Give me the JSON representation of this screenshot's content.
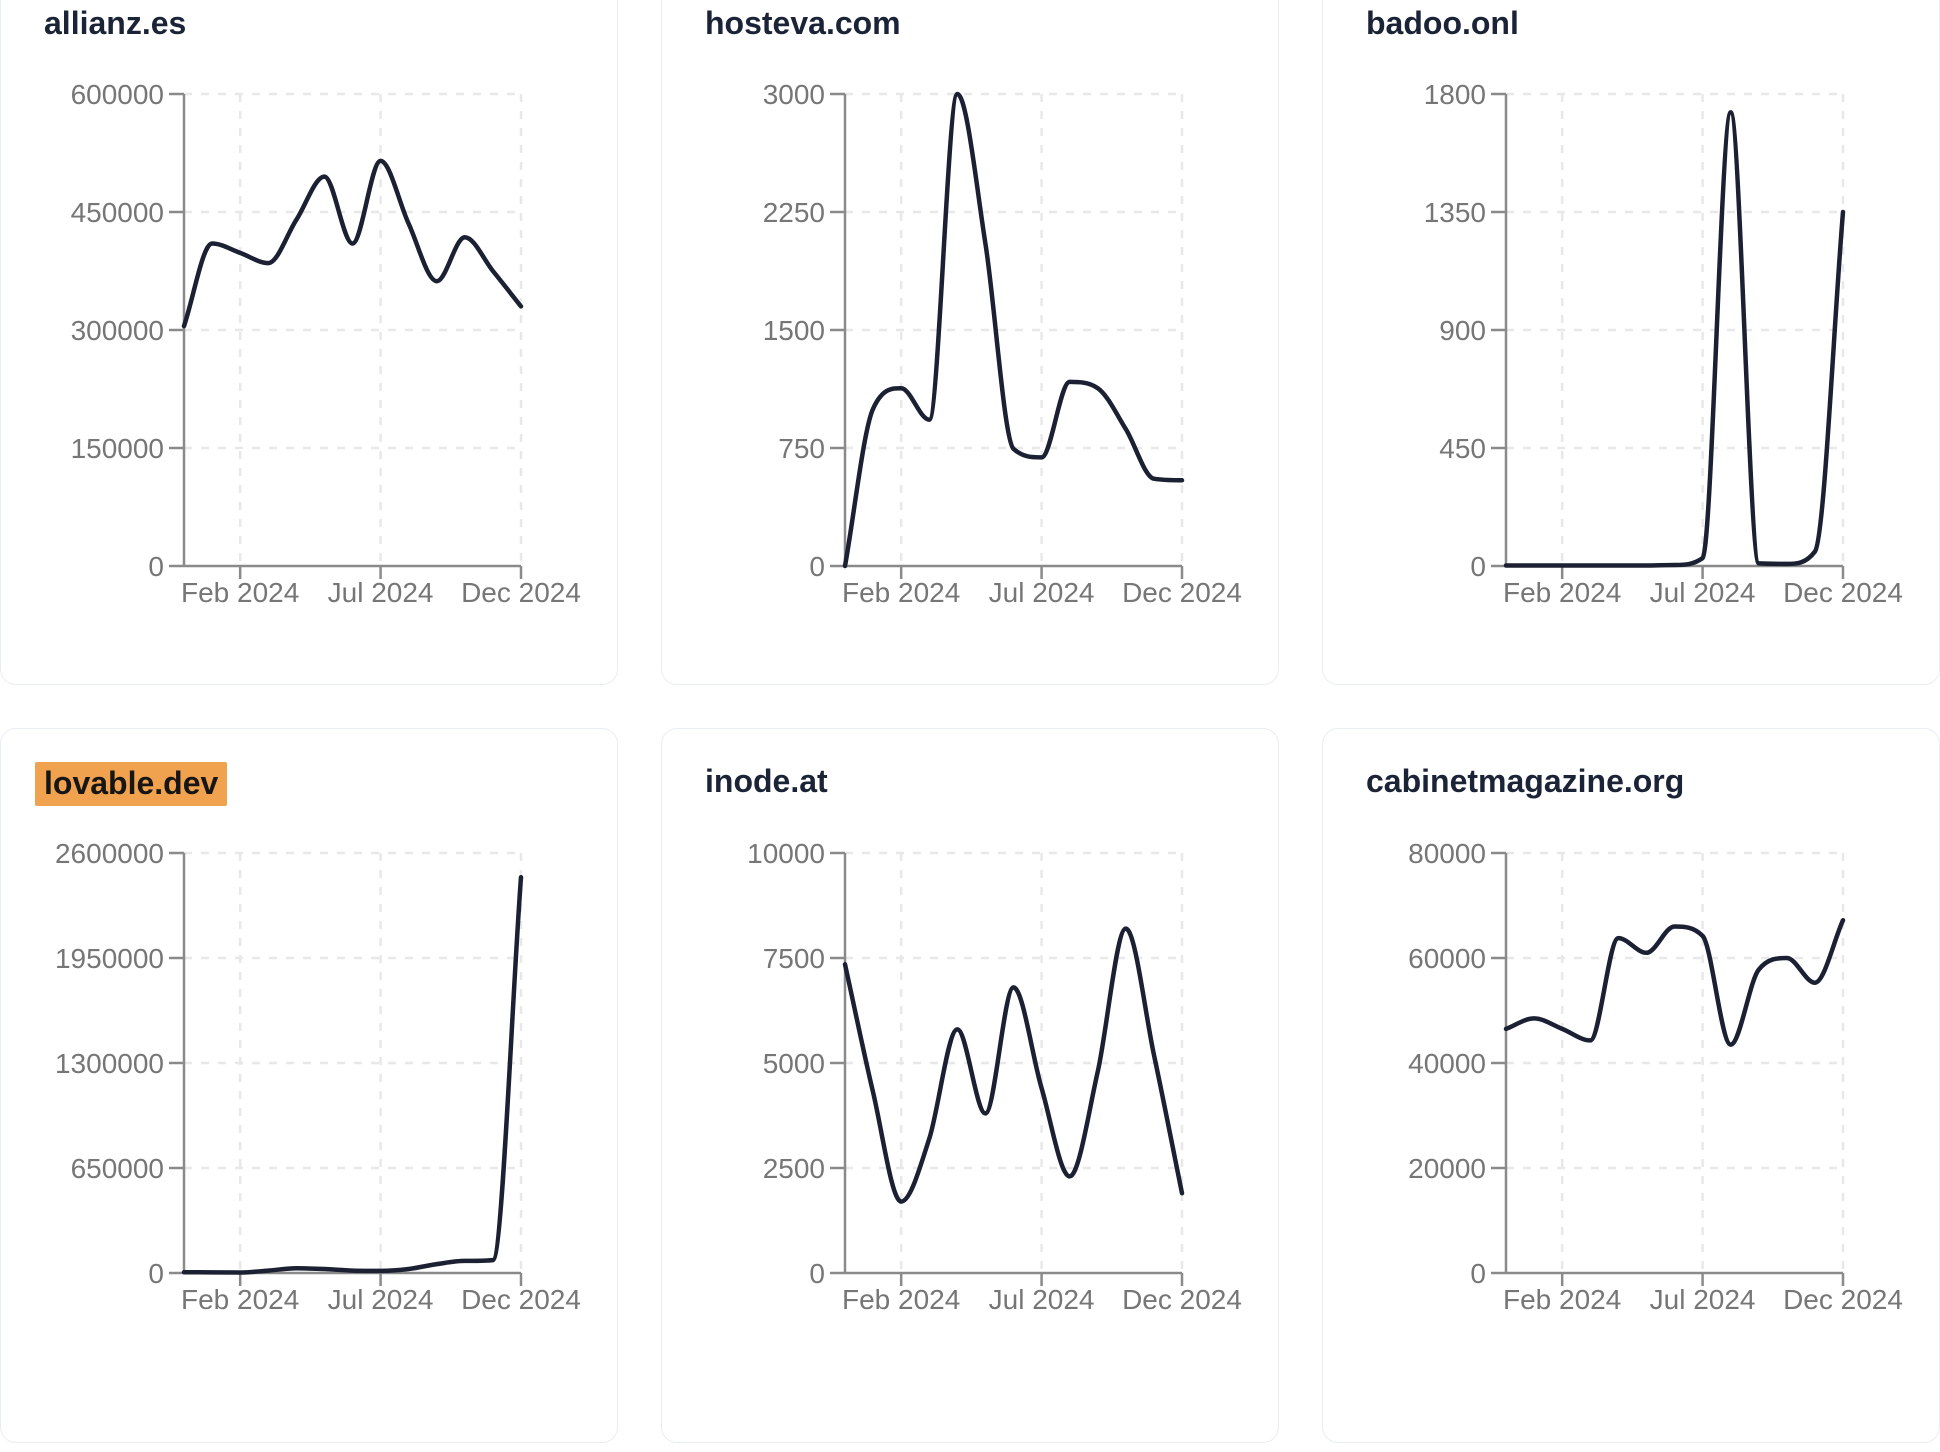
{
  "page": {
    "background": "#ffffff",
    "description": "Dashboard grid of six domain traffic trend cards"
  },
  "style": {
    "line_color": "#1b2033",
    "axis_color": "#8a8a8a",
    "tick_label_color": "#767676",
    "grid_color": "#e8e8e8",
    "title_color": "#1b2437",
    "card_border_color": "#e9edf4",
    "card_background": "#ffffff",
    "highlight_background": "#f0a24e",
    "highlight_text_color": "#161616"
  },
  "x_axis": {
    "months": [
      "Dec 2023",
      "Jan 2024",
      "Feb 2024",
      "Mar 2024",
      "Apr 2024",
      "May 2024",
      "Jun 2024",
      "Jul 2024",
      "Aug 2024",
      "Sep 2024",
      "Oct 2024",
      "Nov 2024",
      "Dec 2024"
    ],
    "tick_indices": [
      2,
      7,
      12
    ],
    "tick_labels": [
      "Feb 2024",
      "Jul 2024",
      "Dec 2024"
    ]
  },
  "chart_data": [
    {
      "type": "line",
      "title": "allianz.es",
      "title_highlighted": false,
      "x": [
        "Dec 2023",
        "Jan 2024",
        "Feb 2024",
        "Mar 2024",
        "Apr 2024",
        "May 2024",
        "Jun 2024",
        "Jul 2024",
        "Aug 2024",
        "Sep 2024",
        "Oct 2024",
        "Nov 2024",
        "Dec 2024"
      ],
      "values": [
        305000,
        410000,
        398000,
        385000,
        440000,
        495000,
        410000,
        515000,
        435000,
        362000,
        418000,
        375000,
        330000
      ],
      "ylim": [
        0,
        600000
      ],
      "yticks": [
        0,
        150000,
        300000,
        450000,
        600000
      ],
      "xtick_labels": [
        "Feb 2024",
        "Jul 2024",
        "Dec 2024"
      ],
      "grid": true,
      "legend": "none"
    },
    {
      "type": "line",
      "title": "hosteva.com",
      "title_highlighted": false,
      "x": [
        "Dec 2023",
        "Jan 2024",
        "Feb 2024",
        "Mar 2024",
        "Apr 2024",
        "May 2024",
        "Jun 2024",
        "Jul 2024",
        "Aug 2024",
        "Sep 2024",
        "Oct 2024",
        "Nov 2024",
        "Dec 2024"
      ],
      "values": [
        0,
        1000,
        1130,
        930,
        3000,
        2050,
        745,
        690,
        1170,
        1130,
        870,
        555,
        545
      ],
      "ylim": [
        0,
        3000
      ],
      "yticks": [
        0,
        750,
        1500,
        2250,
        3000
      ],
      "xtick_labels": [
        "Feb 2024",
        "Jul 2024",
        "Dec 2024"
      ],
      "grid": true,
      "legend": "none"
    },
    {
      "type": "line",
      "title": "badoo.onl",
      "title_highlighted": false,
      "x": [
        "Dec 2023",
        "Jan 2024",
        "Feb 2024",
        "Mar 2024",
        "Apr 2024",
        "May 2024",
        "Jun 2024",
        "Jul 2024",
        "Aug 2024",
        "Sep 2024",
        "Oct 2024",
        "Nov 2024",
        "Dec 2024"
      ],
      "values": [
        2,
        2,
        2,
        2,
        2,
        2,
        4,
        30,
        1730,
        10,
        8,
        55,
        1350
      ],
      "ylim": [
        0,
        1800
      ],
      "yticks": [
        0,
        450,
        900,
        1350,
        1800
      ],
      "xtick_labels": [
        "Feb 2024",
        "Jul 2024",
        "Dec 2024"
      ],
      "grid": true,
      "legend": "none"
    },
    {
      "type": "line",
      "title": "lovable.dev",
      "title_highlighted": true,
      "x": [
        "Dec 2023",
        "Jan 2024",
        "Feb 2024",
        "Mar 2024",
        "Apr 2024",
        "May 2024",
        "Jun 2024",
        "Jul 2024",
        "Aug 2024",
        "Sep 2024",
        "Oct 2024",
        "Nov 2024",
        "Dec 2024"
      ],
      "values": [
        5000,
        4000,
        3000,
        15000,
        30000,
        25000,
        15000,
        13000,
        25000,
        55000,
        75000,
        80000,
        2450000
      ],
      "ylim": [
        0,
        2600000
      ],
      "yticks": [
        0,
        650000,
        1300000,
        1950000,
        2600000
      ],
      "xtick_labels": [
        "Feb 2024",
        "Jul 2024",
        "Dec 2024"
      ],
      "grid": true,
      "legend": "none"
    },
    {
      "type": "line",
      "title": "inode.at",
      "title_highlighted": false,
      "x": [
        "Dec 2023",
        "Jan 2024",
        "Feb 2024",
        "Mar 2024",
        "Apr 2024",
        "May 2024",
        "Jun 2024",
        "Jul 2024",
        "Aug 2024",
        "Sep 2024",
        "Oct 2024",
        "Nov 2024",
        "Dec 2024"
      ],
      "values": [
        7350,
        4300,
        1700,
        3200,
        5800,
        3800,
        6800,
        4400,
        2300,
        4800,
        8200,
        5200,
        1900
      ],
      "ylim": [
        0,
        10000
      ],
      "yticks": [
        0,
        2500,
        5000,
        7500,
        10000
      ],
      "xtick_labels": [
        "Feb 2024",
        "Jul 2024",
        "Dec 2024"
      ],
      "grid": true,
      "legend": "none"
    },
    {
      "type": "line",
      "title": "cabinetmagazine.org",
      "title_highlighted": false,
      "x": [
        "Dec 2023",
        "Jan 2024",
        "Feb 2024",
        "Mar 2024",
        "Apr 2024",
        "May 2024",
        "Jun 2024",
        "Jul 2024",
        "Aug 2024",
        "Sep 2024",
        "Oct 2024",
        "Nov 2024",
        "Dec 2024"
      ],
      "values": [
        46500,
        48500,
        46500,
        44300,
        63800,
        61000,
        66000,
        64200,
        43500,
        57800,
        60000,
        55300,
        67200
      ],
      "ylim": [
        0,
        80000
      ],
      "yticks": [
        0,
        20000,
        40000,
        60000,
        80000
      ],
      "xtick_labels": [
        "Feb 2024",
        "Jul 2024",
        "Dec 2024"
      ],
      "grid": true,
      "legend": "none"
    }
  ]
}
